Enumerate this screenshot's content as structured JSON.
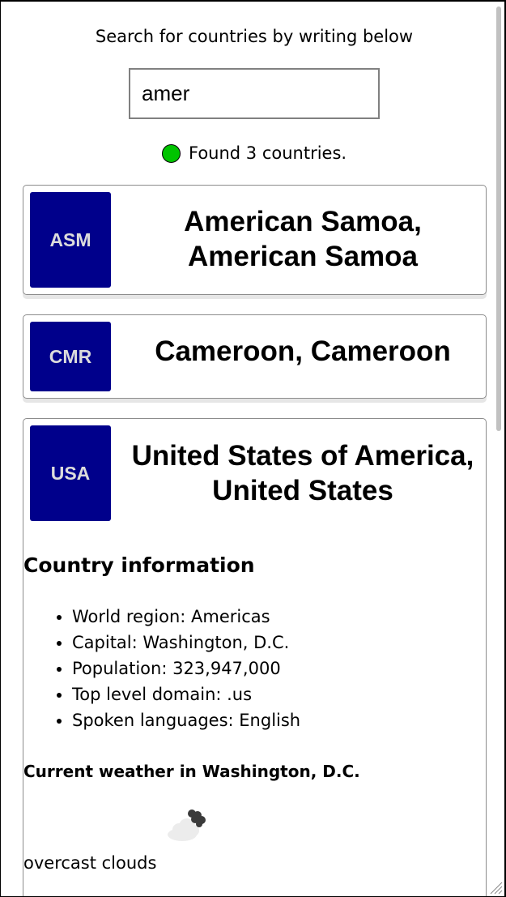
{
  "search": {
    "label": "Search for countries by writing below",
    "value": "amer"
  },
  "status": {
    "text": "Found 3 countries.",
    "indicator_color": "#00c400"
  },
  "countries": [
    {
      "code": "ASM",
      "name": "American Samoa, American Samoa"
    },
    {
      "code": "CMR",
      "name": "Cameroon, Cameroon"
    },
    {
      "code": "USA",
      "name": "United States of America, United States"
    }
  ],
  "details": {
    "heading": "Country information",
    "items": [
      "World region: Americas",
      "Capital: Washington, D.C.",
      "Population: 323,947,000",
      "Top level domain: .us",
      "Spoken languages: English"
    ],
    "weather_heading": "Current weather in Washington, D.C.",
    "weather_icon": "overcast-clouds-icon",
    "weather_description": "overcast clouds"
  },
  "colors": {
    "code_background": "#00008b",
    "code_text": "#dcdcdc"
  }
}
